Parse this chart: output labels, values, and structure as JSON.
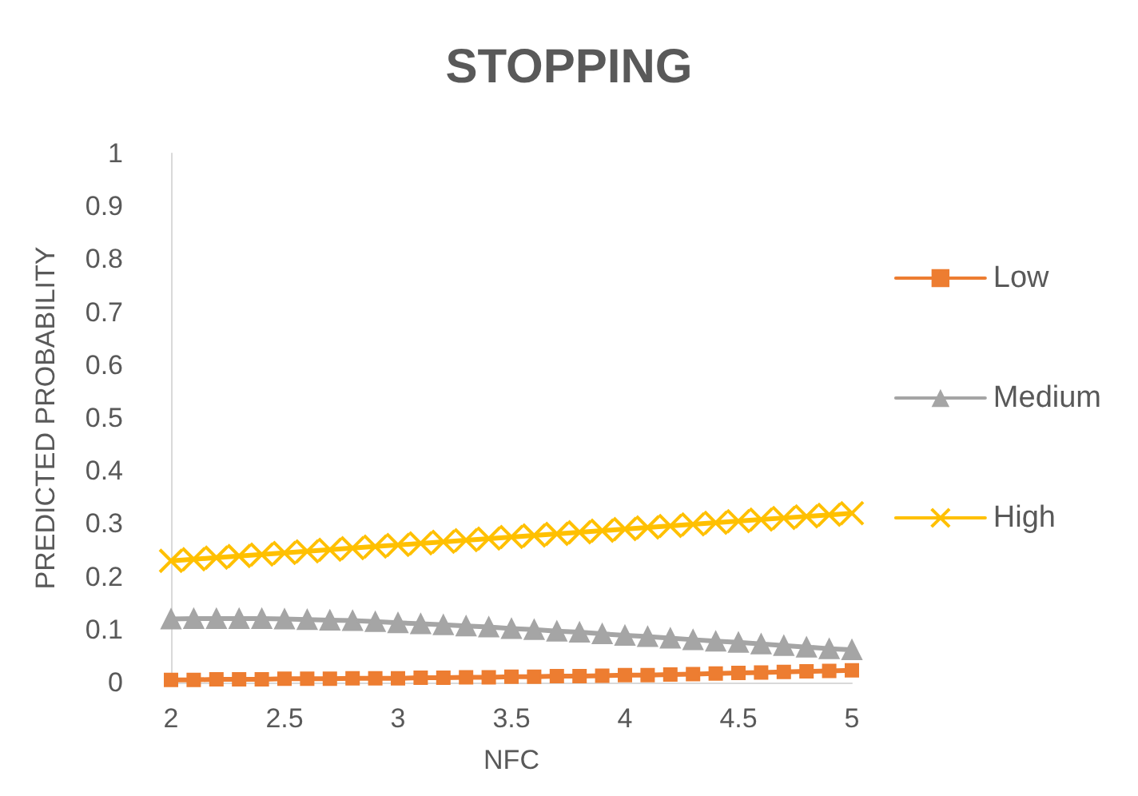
{
  "chart_data": {
    "type": "line",
    "title": "STOPPING",
    "xlabel": "NFC",
    "ylabel": "PREDICTED PROBABILITY",
    "x": [
      2,
      2.1,
      2.2,
      2.3,
      2.4,
      2.5,
      2.6,
      2.7,
      2.8,
      2.9,
      3,
      3.1,
      3.2,
      3.3,
      3.4,
      3.5,
      3.6,
      3.7,
      3.8,
      3.9,
      4,
      4.1,
      4.2,
      4.3,
      4.4,
      4.5,
      4.6,
      4.7,
      4.8,
      4.9,
      5
    ],
    "series": [
      {
        "name": "Low",
        "color": "#ed7d31",
        "marker": "square",
        "values": [
          0.005,
          0.005,
          0.006,
          0.006,
          0.006,
          0.007,
          0.007,
          0.007,
          0.008,
          0.008,
          0.008,
          0.009,
          0.009,
          0.01,
          0.01,
          0.011,
          0.011,
          0.012,
          0.012,
          0.013,
          0.014,
          0.014,
          0.015,
          0.016,
          0.017,
          0.018,
          0.019,
          0.02,
          0.021,
          0.022,
          0.023
        ]
      },
      {
        "name": "Medium",
        "color": "#a5a5a5",
        "marker": "triangle",
        "values": [
          0.12,
          0.121,
          0.121,
          0.121,
          0.121,
          0.12,
          0.119,
          0.118,
          0.117,
          0.115,
          0.113,
          0.111,
          0.109,
          0.107,
          0.105,
          0.102,
          0.1,
          0.097,
          0.095,
          0.092,
          0.089,
          0.087,
          0.084,
          0.081,
          0.078,
          0.076,
          0.073,
          0.07,
          0.067,
          0.064,
          0.062
        ]
      },
      {
        "name": "High",
        "color": "#ffc000",
        "marker": "cross",
        "values": [
          0.23,
          0.233,
          0.236,
          0.239,
          0.242,
          0.245,
          0.248,
          0.251,
          0.254,
          0.257,
          0.26,
          0.263,
          0.266,
          0.269,
          0.272,
          0.275,
          0.278,
          0.281,
          0.284,
          0.287,
          0.29,
          0.293,
          0.296,
          0.299,
          0.302,
          0.305,
          0.308,
          0.311,
          0.314,
          0.317,
          0.32
        ]
      }
    ],
    "xlim": [
      2,
      5
    ],
    "xticks": [
      2,
      2.5,
      3,
      3.5,
      4,
      4.5,
      5
    ],
    "ylim": [
      0,
      1
    ],
    "yticks": [
      0,
      0.1,
      0.2,
      0.3,
      0.4,
      0.5,
      0.6,
      0.7,
      0.8,
      0.9,
      1
    ],
    "grid": false,
    "legend": "right"
  }
}
